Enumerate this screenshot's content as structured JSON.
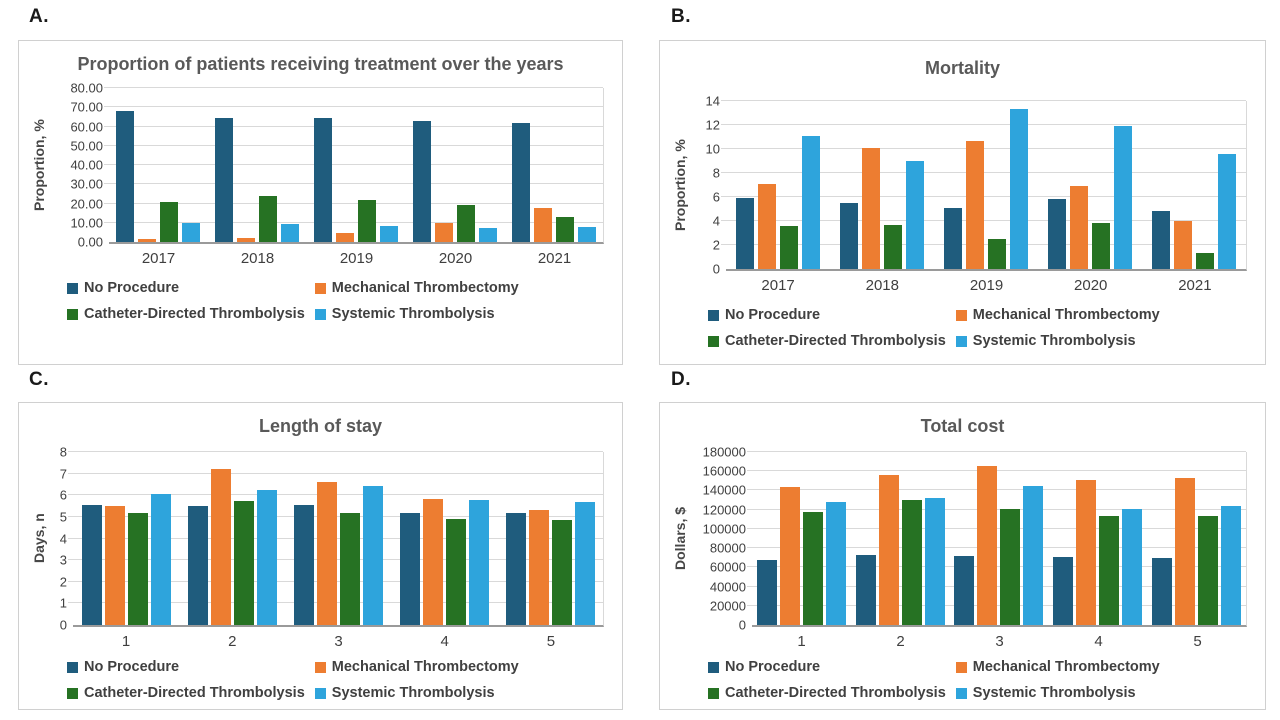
{
  "figure": {
    "background": "#ffffff"
  },
  "chart_data": [
    {
      "panel_label": "A.",
      "type": "bar",
      "title": "Proportion of patients receiving treatment over the years",
      "ylabel": "Proportion, %",
      "ylim": [
        0,
        80
      ],
      "yticks": [
        "0.00",
        "10.00",
        "20.00",
        "30.00",
        "40.00",
        "50.00",
        "60.00",
        "70.00",
        "80.00"
      ],
      "grid": true,
      "legend_position": "bottom",
      "categories": [
        "2017",
        "2018",
        "2019",
        "2020",
        "2021"
      ],
      "series": [
        {
          "name": "No Procedure",
          "color": "#1F5C7D",
          "values": [
            68.0,
            64.4,
            64.4,
            63.0,
            61.8
          ]
        },
        {
          "name": "Mechanical Thrombectomy",
          "color": "#ED7D31",
          "values": [
            1.5,
            2.2,
            4.7,
            10.0,
            17.5
          ]
        },
        {
          "name": "Catheter-Directed Thrombolysis",
          "color": "#267223",
          "values": [
            20.8,
            23.8,
            21.8,
            19.2,
            12.8
          ]
        },
        {
          "name": "Systemic Thrombolysis",
          "color": "#2EA4DC",
          "values": [
            9.9,
            9.3,
            8.2,
            7.5,
            8.0
          ]
        }
      ]
    },
    {
      "panel_label": "B.",
      "type": "bar",
      "title": "Mortality",
      "ylabel": "Proportion, %",
      "ylim": [
        0,
        14
      ],
      "yticks": [
        "0",
        "2",
        "4",
        "6",
        "8",
        "10",
        "12",
        "14"
      ],
      "grid": true,
      "legend_position": "bottom",
      "categories": [
        "2017",
        "2018",
        "2019",
        "2020",
        "2021"
      ],
      "series": [
        {
          "name": "No Procedure",
          "color": "#1F5C7D",
          "values": [
            5.9,
            5.5,
            5.1,
            5.8,
            4.8
          ]
        },
        {
          "name": "Mechanical Thrombectomy",
          "color": "#ED7D31",
          "values": [
            7.1,
            10.1,
            10.7,
            6.9,
            4.0
          ]
        },
        {
          "name": "Catheter-Directed Thrombolysis",
          "color": "#267223",
          "values": [
            3.6,
            3.7,
            2.5,
            3.8,
            1.3
          ]
        },
        {
          "name": "Systemic Thrombolysis",
          "color": "#2EA4DC",
          "values": [
            11.1,
            9.0,
            13.3,
            11.9,
            9.6
          ]
        }
      ]
    },
    {
      "panel_label": "C.",
      "type": "bar",
      "title": "Length of stay",
      "ylabel": "Days, n",
      "ylim": [
        0,
        8
      ],
      "yticks": [
        "0",
        "1",
        "2",
        "3",
        "4",
        "5",
        "6",
        "7",
        "8"
      ],
      "grid": true,
      "legend_position": "bottom",
      "categories": [
        "1",
        "2",
        "3",
        "4",
        "5"
      ],
      "series": [
        {
          "name": "No Procedure",
          "color": "#1F5C7D",
          "values": [
            5.55,
            5.5,
            5.55,
            5.2,
            5.2
          ]
        },
        {
          "name": "Mechanical Thrombectomy",
          "color": "#ED7D31",
          "values": [
            5.5,
            7.2,
            6.6,
            5.85,
            5.3
          ]
        },
        {
          "name": "Catheter-Directed Thrombolysis",
          "color": "#267223",
          "values": [
            5.2,
            5.75,
            5.2,
            4.9,
            4.85
          ]
        },
        {
          "name": "Systemic Thrombolysis",
          "color": "#2EA4DC",
          "values": [
            6.05,
            6.25,
            6.45,
            5.8,
            5.7
          ]
        }
      ]
    },
    {
      "panel_label": "D.",
      "type": "bar",
      "title": "Total cost",
      "ylabel": "Dollars, $",
      "ylim": [
        0,
        180000
      ],
      "yticks": [
        "0",
        "20000",
        "40000",
        "60000",
        "80000",
        "100000",
        "120000",
        "140000",
        "160000",
        "180000"
      ],
      "grid": true,
      "legend_position": "bottom",
      "categories": [
        "1",
        "2",
        "3",
        "4",
        "5"
      ],
      "series": [
        {
          "name": "No Procedure",
          "color": "#1F5C7D",
          "values": [
            68000,
            72500,
            72000,
            71000,
            70000
          ]
        },
        {
          "name": "Mechanical Thrombectomy",
          "color": "#ED7D31",
          "values": [
            144000,
            156000,
            165000,
            150500,
            152500
          ]
        },
        {
          "name": "Catheter-Directed Thrombolysis",
          "color": "#267223",
          "values": [
            117500,
            130000,
            120500,
            113000,
            113500
          ]
        },
        {
          "name": "Systemic Thrombolysis",
          "color": "#2EA4DC",
          "values": [
            127500,
            132000,
            144500,
            121000,
            123500
          ]
        }
      ]
    }
  ]
}
